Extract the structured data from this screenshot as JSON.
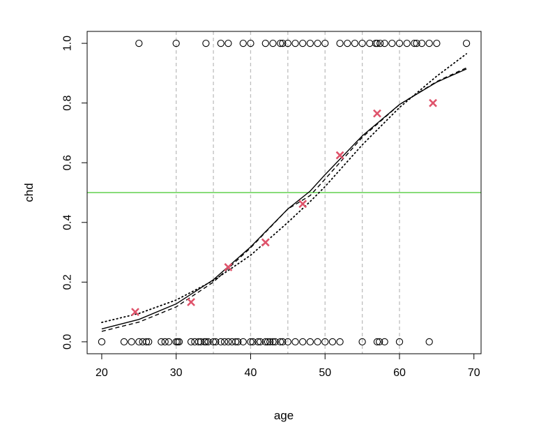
{
  "chart_data": {
    "type": "scatter",
    "title": "",
    "xlabel": "age",
    "ylabel": "chd",
    "xlim": [
      18.04,
      70.96
    ],
    "ylim": [
      -0.04,
      1.04
    ],
    "x_ticks": [
      20,
      30,
      40,
      50,
      60,
      70
    ],
    "x_tick_labels": [
      "20",
      "30",
      "40",
      "50",
      "60",
      "70"
    ],
    "y_ticks": [
      0.0,
      0.2,
      0.4,
      0.6,
      0.8,
      1.0
    ],
    "y_tick_labels": [
      "0.0",
      "0.2",
      "0.4",
      "0.6",
      "0.8",
      "1.0"
    ],
    "grid": false,
    "vertical_reference_lines": [
      30,
      35,
      40,
      45,
      50,
      55,
      60
    ],
    "horizontal_reference_line": 0.5,
    "colors": {
      "points": "#000000",
      "group_means": "#df536b",
      "reference_vertical": "#bebebe",
      "reference_horizontal": "#61d04f",
      "curves": "#000000"
    },
    "observations_chd0": [
      20,
      23,
      24,
      25,
      25.5,
      26,
      26.3,
      28,
      28.5,
      29,
      30,
      30.2,
      30.4,
      32,
      32.5,
      33,
      33.3,
      33.8,
      34,
      34.3,
      35,
      35.3,
      36,
      36.5,
      37,
      37.5,
      38,
      38.3,
      39,
      40,
      40.3,
      41,
      41.3,
      42,
      42.3,
      42.6,
      43,
      43.3,
      44,
      44.3,
      45,
      46,
      47,
      48,
      49,
      50,
      51,
      52,
      55,
      57,
      57.3,
      58,
      60,
      64
    ],
    "observations_chd1": [
      25,
      30,
      34,
      36,
      37,
      39,
      40,
      42,
      43,
      44,
      44.3,
      45,
      46,
      47,
      48,
      49,
      50,
      52,
      53,
      54,
      55,
      56,
      56.8,
      57,
      57.4,
      58,
      59,
      60,
      61,
      62,
      62.3,
      63,
      64,
      65,
      69
    ],
    "group_means": [
      {
        "x": 24.5,
        "y": 0.1
      },
      {
        "x": 32,
        "y": 0.133
      },
      {
        "x": 37,
        "y": 0.25
      },
      {
        "x": 42,
        "y": 0.333
      },
      {
        "x": 47,
        "y": 0.462
      },
      {
        "x": 52,
        "y": 0.625
      },
      {
        "x": 57,
        "y": 0.765
      },
      {
        "x": 64.5,
        "y": 0.8
      }
    ],
    "curves": [
      {
        "style": "solid",
        "x": [
          20,
          25,
          30,
          35,
          40,
          45,
          48,
          50,
          55,
          60,
          65,
          69
        ],
        "y": [
          0.043,
          0.075,
          0.127,
          0.208,
          0.318,
          0.445,
          0.505,
          0.56,
          0.69,
          0.795,
          0.87,
          0.914
        ]
      },
      {
        "style": "dashed",
        "x": [
          20,
          25,
          30,
          35,
          40,
          45,
          48,
          50,
          55,
          60,
          65,
          69
        ],
        "y": [
          0.035,
          0.066,
          0.117,
          0.2,
          0.315,
          0.445,
          0.49,
          0.545,
          0.685,
          0.795,
          0.872,
          0.918
        ]
      },
      {
        "style": "dotted",
        "x": [
          20,
          25,
          30,
          35,
          40,
          45,
          48,
          50,
          55,
          60,
          65,
          69
        ],
        "y": [
          0.065,
          0.095,
          0.14,
          0.205,
          0.29,
          0.4,
          0.47,
          0.52,
          0.66,
          0.785,
          0.89,
          0.965
        ]
      }
    ]
  }
}
